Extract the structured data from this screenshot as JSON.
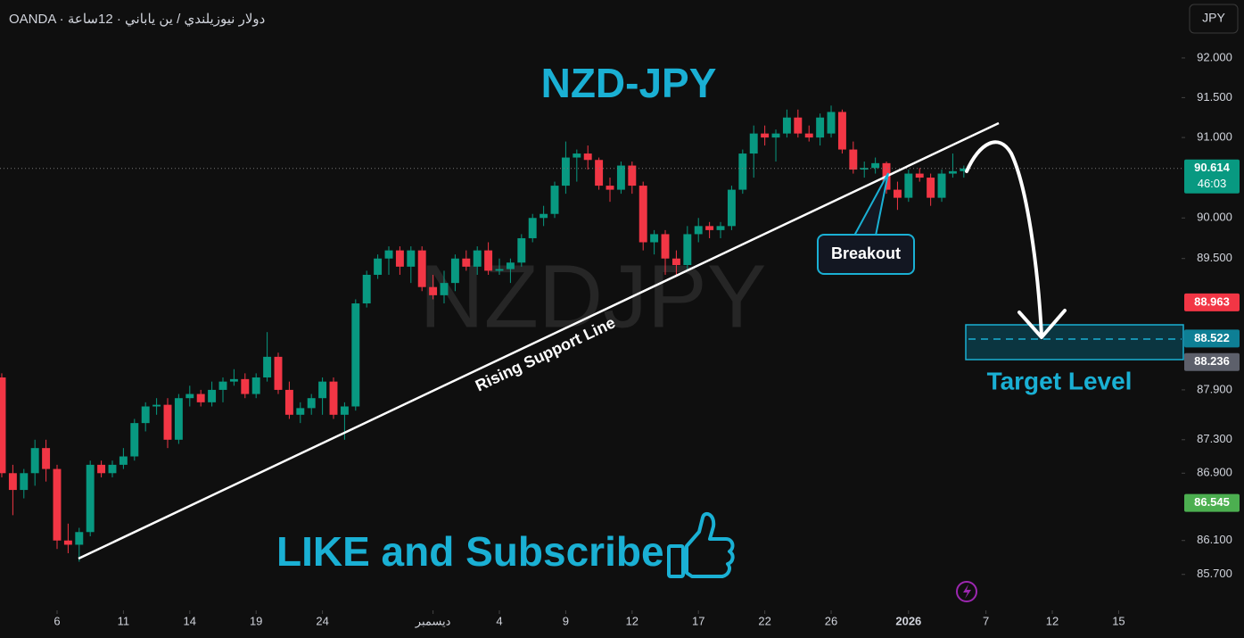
{
  "chart_data": {
    "type": "candlestick",
    "header": "OANDA · دولار نيوزيلندي / ين ياباني · 12ساعة",
    "currency": "JPY",
    "title": "NZD-JPY",
    "watermark": "NZDJPY",
    "annotations": {
      "support": "Rising Support Line",
      "breakout": "Breakout",
      "target": "Target Level",
      "cta": "LIKE and Subscribe"
    },
    "log_scale": true,
    "up_color": "#089981",
    "down_color": "#f23645",
    "ylim": [
      85.32,
      92.735
    ],
    "yticks": [
      {
        "value": 92,
        "label": "92.000"
      },
      {
        "value": 91.5,
        "label": "91.500"
      },
      {
        "value": 91,
        "label": "91.000"
      },
      {
        "value": 90,
        "label": "90.000"
      },
      {
        "value": 89.5,
        "label": "89.500"
      },
      {
        "value": 87.9,
        "label": "87.900"
      },
      {
        "value": 87.3,
        "label": "87.300"
      },
      {
        "value": 86.9,
        "label": "86.900"
      },
      {
        "value": 86.1,
        "label": "86.100"
      },
      {
        "value": 85.7,
        "label": "85.700"
      }
    ],
    "xlim": [
      -0.16,
      106.69
    ],
    "xticks": [
      {
        "value": 5,
        "label": "6"
      },
      {
        "value": 11,
        "label": "11"
      },
      {
        "value": 17,
        "label": "14"
      },
      {
        "value": 23,
        "label": "19"
      },
      {
        "value": 29,
        "label": "24"
      },
      {
        "value": 39,
        "label": "ديسمبر"
      },
      {
        "value": 45,
        "label": "4"
      },
      {
        "value": 51,
        "label": "9"
      },
      {
        "value": 57,
        "label": "12"
      },
      {
        "value": 63,
        "label": "17"
      },
      {
        "value": 69,
        "label": "22"
      },
      {
        "value": 75,
        "label": "26"
      },
      {
        "value": 82,
        "label": "2026"
      },
      {
        "value": 89,
        "label": "7"
      },
      {
        "value": 95,
        "label": "12"
      },
      {
        "value": 101,
        "label": "15"
      }
    ],
    "markers": [
      {
        "value": 90.614,
        "color": "#089981",
        "countdown": "46:03"
      },
      {
        "value": 88.963,
        "color": "#f23645"
      },
      {
        "value": 88.522,
        "color": "#0e7f95"
      },
      {
        "value": 88.236,
        "color": "#5d606b"
      },
      {
        "value": 86.545,
        "color": "#4caf50"
      }
    ],
    "ohlc": [
      [
        88.05,
        88.1,
        86.85,
        86.9
      ],
      [
        86.9,
        87.0,
        86.4,
        86.7
      ],
      [
        86.7,
        86.95,
        86.6,
        86.9
      ],
      [
        86.9,
        87.3,
        86.75,
        87.2
      ],
      [
        87.2,
        87.3,
        86.8,
        86.95
      ],
      [
        86.95,
        87.0,
        86.0,
        86.1
      ],
      [
        86.1,
        86.3,
        85.95,
        86.05
      ],
      [
        86.05,
        86.25,
        85.85,
        86.2
      ],
      [
        86.2,
        87.05,
        86.15,
        87.0
      ],
      [
        87.0,
        87.05,
        86.85,
        86.9
      ],
      [
        86.9,
        87.05,
        86.85,
        87.0
      ],
      [
        87.0,
        87.2,
        86.95,
        87.1
      ],
      [
        87.1,
        87.55,
        87.05,
        87.5
      ],
      [
        87.5,
        87.75,
        87.4,
        87.7
      ],
      [
        87.7,
        87.8,
        87.6,
        87.72
      ],
      [
        87.72,
        87.8,
        87.2,
        87.3
      ],
      [
        87.3,
        87.85,
        87.25,
        87.8
      ],
      [
        87.8,
        87.95,
        87.7,
        87.85
      ],
      [
        87.85,
        87.9,
        87.7,
        87.75
      ],
      [
        87.75,
        88.0,
        87.7,
        87.9
      ],
      [
        87.9,
        88.05,
        87.75,
        88.0
      ],
      [
        88.0,
        88.15,
        87.95,
        88.03
      ],
      [
        88.03,
        88.1,
        87.8,
        87.85
      ],
      [
        87.85,
        88.1,
        87.8,
        88.05
      ],
      [
        88.05,
        88.6,
        88.0,
        88.3
      ],
      [
        88.3,
        88.35,
        87.85,
        87.9
      ],
      [
        87.9,
        88.0,
        87.55,
        87.6
      ],
      [
        87.6,
        87.75,
        87.5,
        87.68
      ],
      [
        87.68,
        87.85,
        87.6,
        87.8
      ],
      [
        87.8,
        88.05,
        87.6,
        88.0
      ],
      [
        88.0,
        88.05,
        87.55,
        87.6
      ],
      [
        87.6,
        87.75,
        87.3,
        87.7
      ],
      [
        87.7,
        89.0,
        87.65,
        88.95
      ],
      [
        88.95,
        89.35,
        88.9,
        89.3
      ],
      [
        89.3,
        89.55,
        89.25,
        89.5
      ],
      [
        89.5,
        89.65,
        89.3,
        89.6
      ],
      [
        89.6,
        89.65,
        89.3,
        89.4
      ],
      [
        89.4,
        89.65,
        89.2,
        89.6
      ],
      [
        89.6,
        89.65,
        89.1,
        89.15
      ],
      [
        89.15,
        89.3,
        89.0,
        89.05
      ],
      [
        89.05,
        89.35,
        88.95,
        89.2
      ],
      [
        89.2,
        89.55,
        89.1,
        89.5
      ],
      [
        89.5,
        89.6,
        89.35,
        89.4
      ],
      [
        89.4,
        89.65,
        89.3,
        89.6
      ],
      [
        89.6,
        89.7,
        89.3,
        89.35
      ],
      [
        89.35,
        89.5,
        89.3,
        89.37
      ],
      [
        89.37,
        89.5,
        89.2,
        89.45
      ],
      [
        89.45,
        89.8,
        89.4,
        89.75
      ],
      [
        89.75,
        90.05,
        89.7,
        90.0
      ],
      [
        90.0,
        90.15,
        89.9,
        90.05
      ],
      [
        90.05,
        90.45,
        90.0,
        90.4
      ],
      [
        90.4,
        90.95,
        90.3,
        90.75
      ],
      [
        90.75,
        90.85,
        90.45,
        90.8
      ],
      [
        90.8,
        90.9,
        90.6,
        90.72
      ],
      [
        90.72,
        90.75,
        90.35,
        90.4
      ],
      [
        90.4,
        90.5,
        90.2,
        90.35
      ],
      [
        90.35,
        90.7,
        90.3,
        90.65
      ],
      [
        90.65,
        90.7,
        90.3,
        90.4
      ],
      [
        90.4,
        90.45,
        89.6,
        89.7
      ],
      [
        89.7,
        89.85,
        89.55,
        89.8
      ],
      [
        89.8,
        89.85,
        89.3,
        89.5
      ],
      [
        89.5,
        89.6,
        89.3,
        89.42
      ],
      [
        89.42,
        89.9,
        89.35,
        89.8
      ],
      [
        89.8,
        90.0,
        89.7,
        89.9
      ],
      [
        89.9,
        89.95,
        89.75,
        89.85
      ],
      [
        89.85,
        89.95,
        89.75,
        89.9
      ],
      [
        89.9,
        90.4,
        89.85,
        90.35
      ],
      [
        90.35,
        90.85,
        90.3,
        90.8
      ],
      [
        90.8,
        91.15,
        90.5,
        91.05
      ],
      [
        91.05,
        91.15,
        90.9,
        91.0
      ],
      [
        91.0,
        91.1,
        90.7,
        91.05
      ],
      [
        91.05,
        91.35,
        91.0,
        91.25
      ],
      [
        91.25,
        91.35,
        91.0,
        91.05
      ],
      [
        91.05,
        91.15,
        90.95,
        91.0
      ],
      [
        91.0,
        91.3,
        90.9,
        91.25
      ],
      [
        91.05,
        91.4,
        91.0,
        91.32
      ],
      [
        91.32,
        91.35,
        90.8,
        90.85
      ],
      [
        90.85,
        90.95,
        90.55,
        90.6
      ],
      [
        90.6,
        90.7,
        90.5,
        90.62
      ],
      [
        90.62,
        90.75,
        90.55,
        90.68
      ],
      [
        90.68,
        90.7,
        90.3,
        90.35
      ],
      [
        90.35,
        90.45,
        90.1,
        90.25
      ],
      [
        90.25,
        90.6,
        90.2,
        90.55
      ],
      [
        90.55,
        90.62,
        90.45,
        90.5
      ],
      [
        90.5,
        90.55,
        90.15,
        90.25
      ],
      [
        90.25,
        90.6,
        90.2,
        90.55
      ],
      [
        90.55,
        90.8,
        90.5,
        90.58
      ],
      [
        90.58,
        90.65,
        90.5,
        90.614
      ]
    ]
  }
}
